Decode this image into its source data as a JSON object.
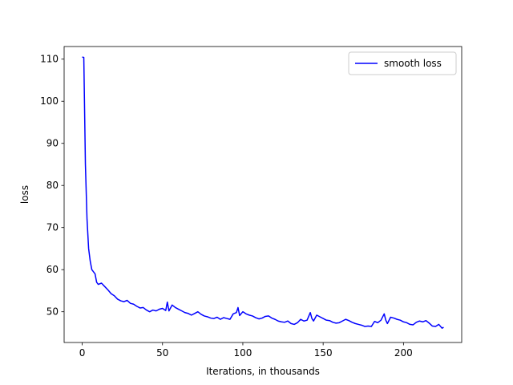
{
  "chart_data": {
    "type": "line",
    "title": "",
    "xlabel": "Iterations, in thousands",
    "ylabel": "loss",
    "xlim": [
      -11.25,
      236.25
    ],
    "ylim": [
      42.7,
      113.0
    ],
    "xticks": [
      0,
      50,
      100,
      150,
      200
    ],
    "yticks": [
      50,
      60,
      70,
      80,
      90,
      100,
      110
    ],
    "grid": false,
    "legend_position": "top-right",
    "series": [
      {
        "name": "smooth loss",
        "color": "#0000ff",
        "x": [
          0,
          1,
          2,
          3,
          4,
          5,
          6,
          7,
          8,
          9,
          10,
          12,
          14,
          16,
          18,
          20,
          22,
          24,
          26,
          28,
          30,
          32,
          34,
          36,
          38,
          40,
          42,
          44,
          46,
          48,
          50,
          52,
          53,
          54,
          56,
          58,
          60,
          62,
          64,
          66,
          68,
          70,
          72,
          74,
          76,
          78,
          80,
          82,
          84,
          86,
          88,
          90,
          92,
          94,
          96,
          97,
          98,
          100,
          102,
          104,
          106,
          108,
          110,
          112,
          114,
          116,
          118,
          120,
          122,
          124,
          126,
          128,
          130,
          132,
          134,
          136,
          138,
          140,
          142,
          143,
          144,
          146,
          148,
          150,
          152,
          154,
          156,
          158,
          160,
          162,
          164,
          166,
          168,
          170,
          172,
          174,
          176,
          178,
          180,
          182,
          184,
          186,
          188,
          189,
          190,
          192,
          194,
          196,
          198,
          200,
          202,
          204,
          206,
          208,
          210,
          212,
          214,
          216,
          218,
          220,
          222,
          224,
          225
        ],
        "y": [
          110.5,
          110.4,
          85,
          72,
          65,
          62,
          60,
          59.5,
          59,
          57,
          56.5,
          56.8,
          56,
          55.2,
          54.3,
          53.8,
          53.0,
          52.6,
          52.4,
          52.7,
          52.0,
          51.8,
          51.3,
          50.9,
          51.0,
          50.4,
          50.0,
          50.4,
          50.2,
          50.6,
          50.8,
          50.3,
          52.3,
          50.2,
          51.6,
          51.0,
          50.6,
          50.2,
          49.8,
          49.6,
          49.2,
          49.6,
          50.0,
          49.4,
          49.0,
          48.8,
          48.5,
          48.4,
          48.7,
          48.2,
          48.6,
          48.4,
          48.2,
          49.5,
          49.8,
          51.0,
          49.1,
          50.0,
          49.5,
          49.2,
          49.0,
          48.6,
          48.3,
          48.5,
          48.9,
          49.0,
          48.5,
          48.2,
          47.8,
          47.6,
          47.5,
          47.8,
          47.2,
          47.0,
          47.4,
          48.2,
          47.8,
          48.0,
          49.8,
          48.4,
          47.8,
          49.2,
          48.8,
          48.4,
          48.0,
          47.9,
          47.5,
          47.3,
          47.4,
          47.8,
          48.2,
          47.9,
          47.5,
          47.2,
          47.0,
          46.8,
          46.5,
          46.6,
          46.5,
          47.7,
          47.4,
          48.0,
          49.5,
          48.0,
          47.2,
          48.7,
          48.5,
          48.2,
          48.0,
          47.6,
          47.4,
          47.0,
          46.9,
          47.5,
          47.8,
          47.6,
          47.9,
          47.3,
          46.6,
          46.5,
          47.0,
          46.1,
          46.3
        ]
      }
    ]
  }
}
